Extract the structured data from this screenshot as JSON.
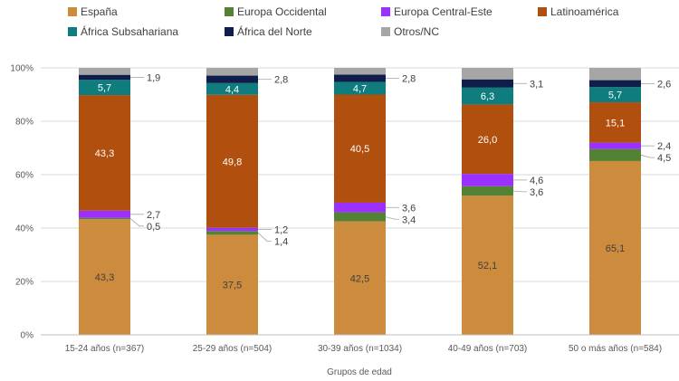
{
  "chart_data": {
    "type": "bar",
    "stacked": true,
    "normalized": true,
    "categories": [
      "15-24 años (n=367)",
      "25-29 años (n=504)",
      "30-39 años (n=1034)",
      "40-49 años (n=703)",
      "50 o más años (n=584)"
    ],
    "series": [
      {
        "name": "España",
        "color": "#CD8B3E",
        "values": [
          43.3,
          37.5,
          42.5,
          52.1,
          65.1
        ],
        "labels": [
          "43,3",
          "37,5",
          "42,5",
          "52,1",
          "65,1"
        ]
      },
      {
        "name": "Europa Occidental",
        "color": "#548235",
        "values": [
          0.5,
          1.4,
          3.4,
          3.6,
          4.5
        ],
        "labels": [
          "0,5",
          "1,4",
          "3,4",
          "3,6",
          "4,5"
        ]
      },
      {
        "name": "Europa Central-Este",
        "color": "#9B30FF",
        "values": [
          2.7,
          1.2,
          3.6,
          4.6,
          2.4
        ],
        "labels": [
          "2,7",
          "1,2",
          "3,6",
          "4,6",
          "2,4"
        ]
      },
      {
        "name": "Latinoamérica",
        "color": "#B14F0E",
        "values": [
          43.3,
          49.8,
          40.5,
          26.0,
          15.1
        ],
        "labels": [
          "43,3",
          "49,8",
          "40,5",
          "26,0",
          "15,1"
        ]
      },
      {
        "name": "África Subsahariana",
        "color": "#0F7D7E",
        "values": [
          5.7,
          4.4,
          4.7,
          6.3,
          5.7
        ],
        "labels": [
          "5,7",
          "4,4",
          "4,7",
          "6,3",
          "5,7"
        ]
      },
      {
        "name": "África del Norte",
        "color": "#0E1D4A",
        "values": [
          1.9,
          2.8,
          2.8,
          3.1,
          2.6
        ],
        "labels": [
          "1,9",
          "2,8",
          "2,8",
          "3,1",
          "2,6"
        ]
      },
      {
        "name": "Otros/NC",
        "color": "#A6A6A6",
        "values": [
          2.6,
          2.9,
          2.5,
          4.3,
          4.6
        ],
        "labels": [
          "",
          "",
          "",
          "",
          ""
        ]
      }
    ],
    "xlabel": "Grupos de edad",
    "ylabel": "",
    "ylim": [
      0,
      100
    ],
    "yticks": [
      "0%",
      "20%",
      "40%",
      "60%",
      "80%",
      "100%"
    ],
    "grid": true,
    "legend": "top"
  }
}
